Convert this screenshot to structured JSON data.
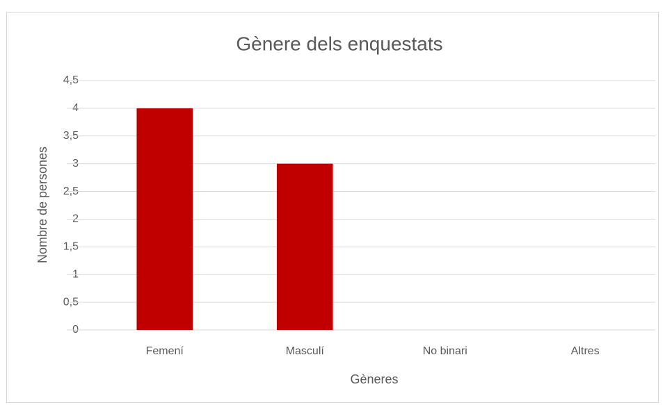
{
  "chart_data": {
    "type": "bar",
    "title": "Gènere dels enquestats",
    "x_label": "Gèneres",
    "y_label": "Nombre de persones",
    "categories": [
      "Femení",
      "Masculí",
      "No binari",
      "Altres"
    ],
    "values": [
      4,
      3,
      0,
      0
    ],
    "color": "#c00000",
    "ylim": [
      0,
      4.5
    ],
    "yticks": [
      0,
      {
        "value": 0.5,
        "label": "0,5"
      },
      1,
      {
        "value": 1.5,
        "label": "1,5"
      },
      2,
      {
        "value": 2.5,
        "label": "2,5"
      },
      3,
      {
        "value": 3.5,
        "label": "3,5"
      },
      4,
      {
        "value": 4.5,
        "label": "4,5"
      }
    ],
    "grid": true
  }
}
